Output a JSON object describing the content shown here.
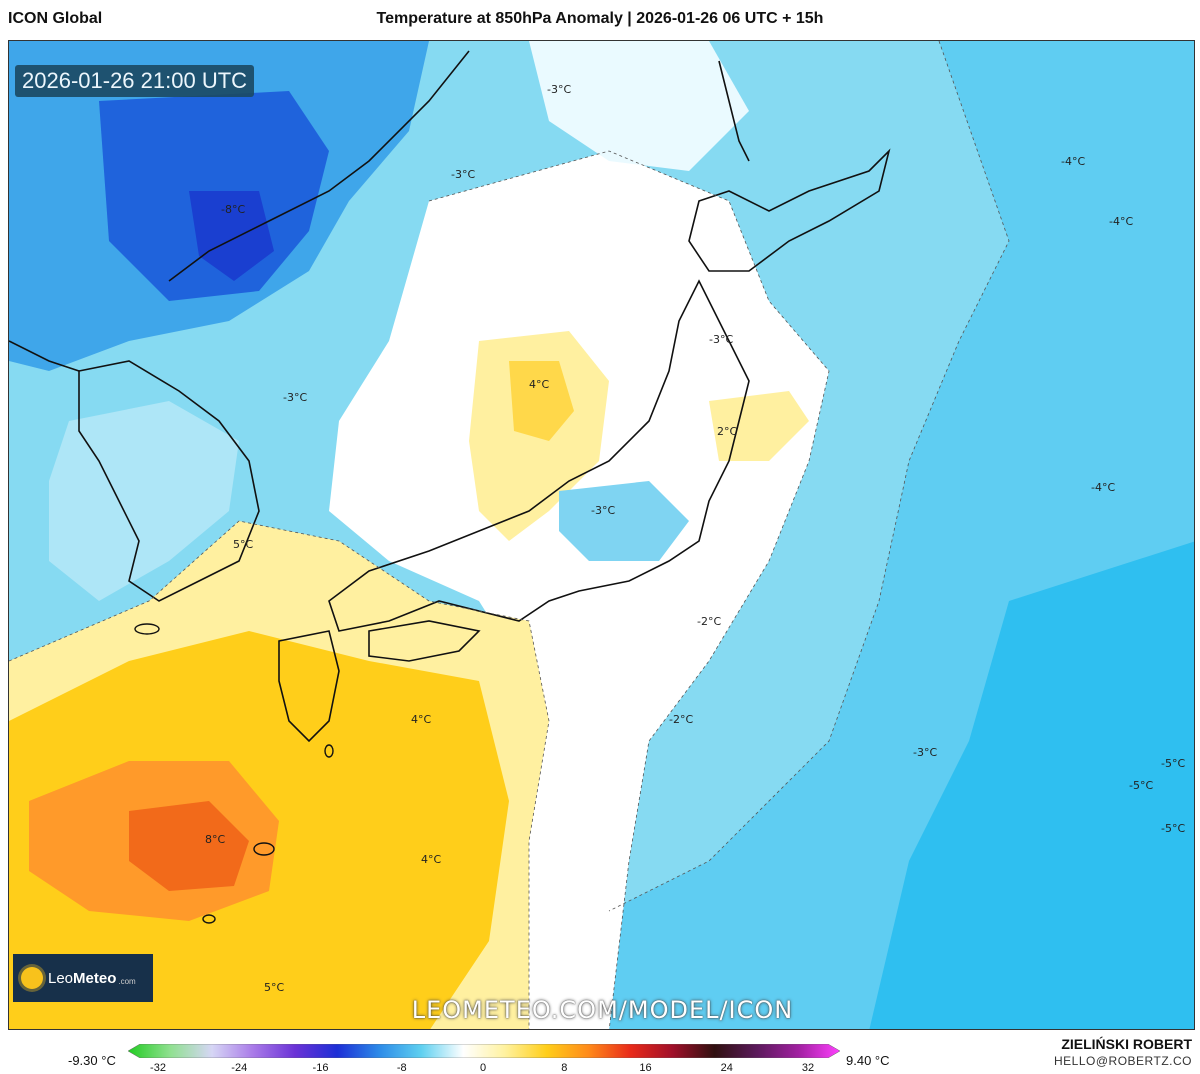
{
  "header": {
    "model": "ICON Global",
    "title": "Temperature at 850hPa Anomaly | 2026-01-26 06 UTC + 15h"
  },
  "map": {
    "valid_time": "2026-01-26 21:00 UTC",
    "watermark": "LEOMETEO.COM/MODEL/ICON",
    "logo": {
      "name_light": "Leo",
      "name_bold": "Meteo",
      "suffix": ".com"
    },
    "isotherm_labels": [
      "-8°C",
      "-3°C",
      "-3°C",
      "-3°C",
      "-3°C",
      "4°C",
      "2°C",
      "-3°C",
      "-4°C",
      "-4°C",
      "-4°C",
      "5°C",
      "-2°C",
      "4°C",
      "-2°C",
      "-3°C",
      "8°C",
      "4°C",
      "-5°C",
      "-5°C",
      "-5°C",
      "5°C"
    ]
  },
  "legend": {
    "min_label": "-9.30 °C",
    "max_label": "9.40 °C",
    "ticks": [
      "-32",
      "-24",
      "-16",
      "-8",
      "0",
      "8",
      "16",
      "24",
      "32"
    ],
    "colors": [
      "#22cc22",
      "#8fe08f",
      "#d6d6f5",
      "#a97ae8",
      "#6a32d6",
      "#1d2fd6",
      "#2d8be8",
      "#5fd0f0",
      "#ffffff",
      "#fff2a0",
      "#ffce1a",
      "#ff8a1a",
      "#e82a1a",
      "#a0102a",
      "#301010",
      "#5a1a5a",
      "#a020a0",
      "#ff40ff"
    ]
  },
  "footer": {
    "author": "ZIELIŃSKI ROBERT",
    "email": "HELLO@ROBERTZ.CO"
  }
}
